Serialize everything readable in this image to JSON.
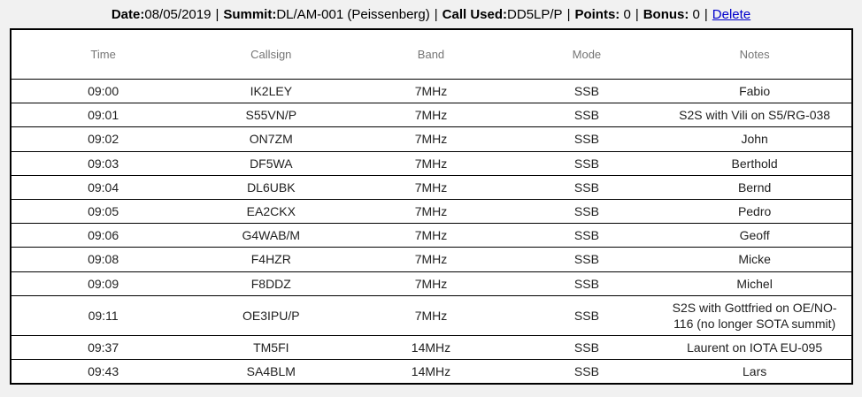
{
  "header": {
    "separator": "|",
    "fields": [
      {
        "label": "Date:",
        "value": "08/05/2019"
      },
      {
        "label": "Summit:",
        "value": "DL/AM-001 (Peissenberg)"
      },
      {
        "label": "Call Used:",
        "value": "DD5LP/P"
      },
      {
        "label": "Points: ",
        "value": "0"
      },
      {
        "label": "Bonus: ",
        "value": "0"
      }
    ],
    "delete_link": "Delete"
  },
  "table": {
    "columns": [
      "Time",
      "Callsign",
      "Band",
      "Mode",
      "Notes"
    ],
    "rows": [
      [
        "09:00",
        "IK2LEY",
        "7MHz",
        "SSB",
        "Fabio"
      ],
      [
        "09:01",
        "S55VN/P",
        "7MHz",
        "SSB",
        "S2S with Vili on S5/RG-038"
      ],
      [
        "09:02",
        "ON7ZM",
        "7MHz",
        "SSB",
        "John"
      ],
      [
        "09:03",
        "DF5WA",
        "7MHz",
        "SSB",
        "Berthold"
      ],
      [
        "09:04",
        "DL6UBK",
        "7MHz",
        "SSB",
        "Bernd"
      ],
      [
        "09:05",
        "EA2CKX",
        "7MHz",
        "SSB",
        "Pedro"
      ],
      [
        "09:06",
        "G4WAB/M",
        "7MHz",
        "SSB",
        "Geoff"
      ],
      [
        "09:08",
        "F4HZR",
        "7MHz",
        "SSB",
        "Micke"
      ],
      [
        "09:09",
        "F8DDZ",
        "7MHz",
        "SSB",
        "Michel"
      ],
      [
        "09:11",
        "OE3IPU/P",
        "7MHz",
        "SSB",
        "S2S with Gottfried on OE/NO-116 (no longer SOTA summit)"
      ],
      [
        "09:37",
        "TM5FI",
        "14MHz",
        "SSB",
        "Laurent on IOTA EU-095"
      ],
      [
        "09:43",
        "SA4BLM",
        "14MHz",
        "SSB",
        "Lars"
      ]
    ]
  },
  "colors": {
    "page_bg": "#f1f1f1",
    "table_bg": "#ffffff",
    "border": "#000000",
    "cell_text": "#212121",
    "header_text": "#757575",
    "label_text": "#000000",
    "link": "#0000cc"
  }
}
